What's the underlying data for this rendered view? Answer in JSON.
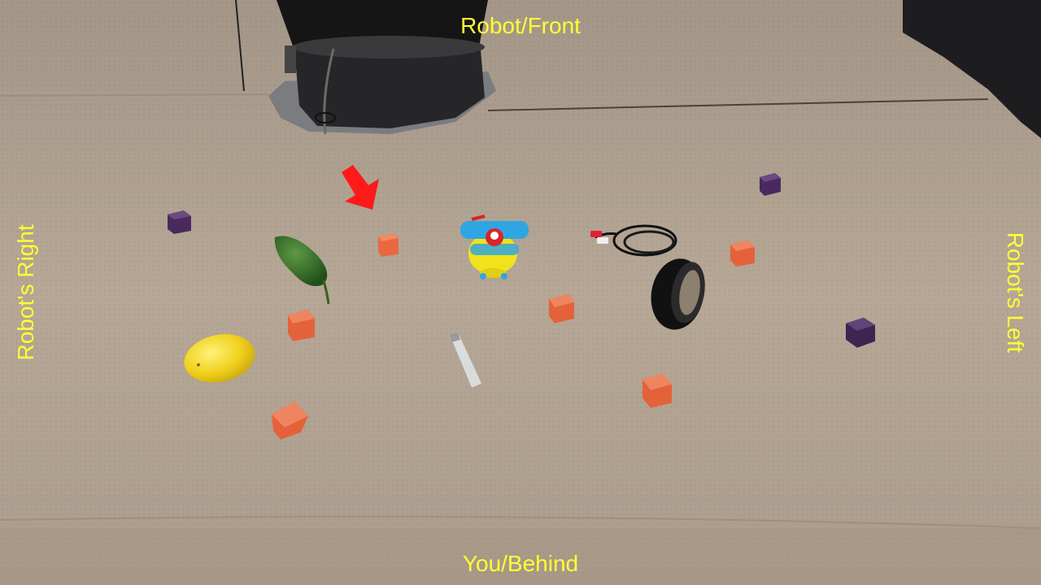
{
  "labels": {
    "front": "Robot/Front",
    "behind": "You/Behind",
    "robot_right": "Robot's Right",
    "robot_left": "Robot's Left"
  },
  "colors": {
    "label": "#ffff33",
    "table": "#b3a392",
    "orange_block": "#e8683f",
    "purple_block": "#4a2a5e",
    "arrow": "#ff1a1a"
  }
}
